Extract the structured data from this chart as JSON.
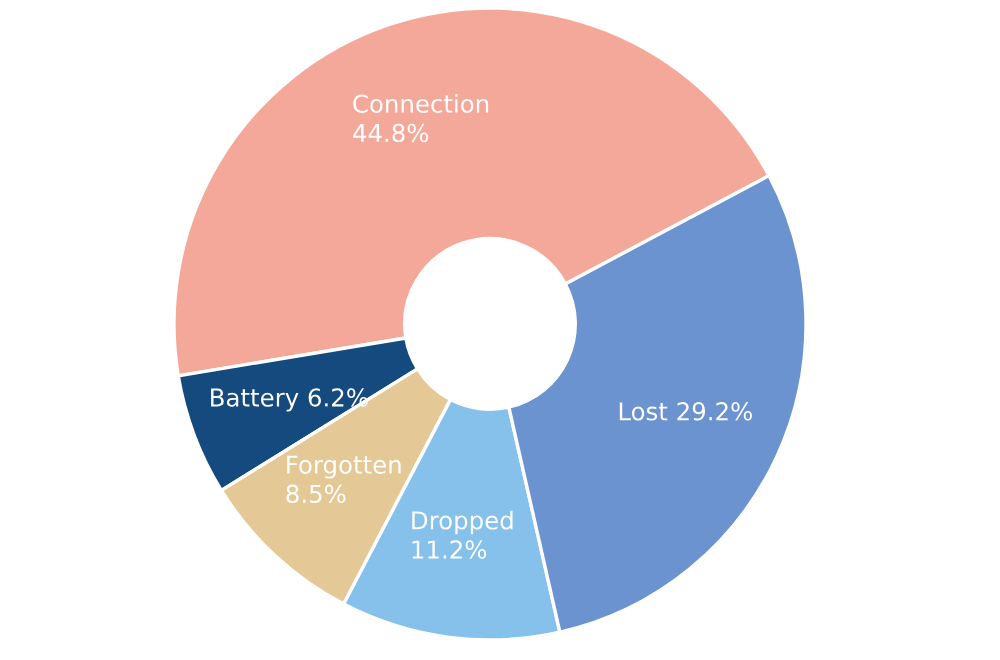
{
  "chart_data": {
    "type": "donut",
    "categories": [
      "Connection",
      "Battery",
      "Forgotten",
      "Dropped",
      "Lost"
    ],
    "values": [
      44.8,
      6.2,
      8.5,
      11.2,
      29.2
    ],
    "colors": [
      "#f4a89a",
      "#154a7e",
      "#e4c896",
      "#85c1ea",
      "#6a93cf"
    ],
    "value_labels": [
      "44.8%",
      "6.2%",
      "8.5%",
      "11.2%",
      "29.2%"
    ],
    "legend": false
  }
}
